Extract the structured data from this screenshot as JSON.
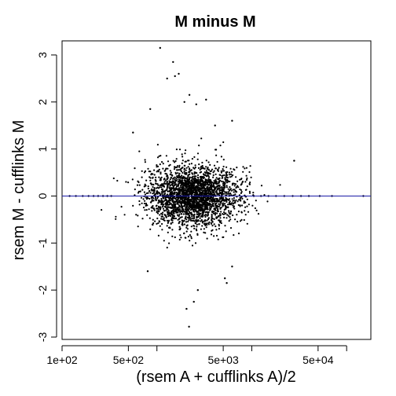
{
  "chart_data": {
    "type": "scatter",
    "title": "M minus M",
    "xlabel": "(rsem A + cufflinks A)/2",
    "ylabel": "rsem M - cufflinks M",
    "x_scale": "log",
    "xlim": [
      100,
      180000
    ],
    "ylim": [
      -3.05,
      3.3
    ],
    "x_ticks": [
      {
        "value": 100,
        "label": "1e+02"
      },
      {
        "value": 500,
        "label": "5e+02"
      },
      {
        "value": 5000,
        "label": "5e+03"
      },
      {
        "value": 50000,
        "label": "5e+04"
      }
    ],
    "x_minor_ticks": [
      1000,
      10000,
      100000
    ],
    "y_ticks": [
      {
        "value": -3,
        "label": "-3"
      },
      {
        "value": -2,
        "label": "-2"
      },
      {
        "value": -1,
        "label": "-1"
      },
      {
        "value": 0,
        "label": "0"
      },
      {
        "value": 1,
        "label": "1"
      },
      {
        "value": 2,
        "label": "2"
      },
      {
        "value": 3,
        "label": "3"
      }
    ],
    "reference_line": {
      "y": 0,
      "color": "#1a1aa6"
    },
    "point_color": "#000000",
    "grid": false,
    "legend": "none",
    "points": [
      {
        "x": 1080,
        "y": 3.15
      },
      {
        "x": 1480,
        "y": 2.85
      },
      {
        "x": 1700,
        "y": 2.6
      },
      {
        "x": 1280,
        "y": 2.5
      },
      {
        "x": 1550,
        "y": 2.55
      },
      {
        "x": 2200,
        "y": 2.15
      },
      {
        "x": 3300,
        "y": 2.05
      },
      {
        "x": 1950,
        "y": 2.0
      },
      {
        "x": 2600,
        "y": 1.95
      },
      {
        "x": 850,
        "y": 1.85
      },
      {
        "x": 6200,
        "y": 1.6
      },
      {
        "x": 560,
        "y": 1.35
      },
      {
        "x": 4100,
        "y": 1.5
      },
      {
        "x": 28000,
        "y": 0.75
      },
      {
        "x": 5200,
        "y": -1.75
      },
      {
        "x": 5450,
        "y": -1.85
      },
      {
        "x": 2700,
        "y": -2.0
      },
      {
        "x": 2450,
        "y": -2.25
      },
      {
        "x": 2050,
        "y": -2.4
      },
      {
        "x": 2180,
        "y": -2.78
      },
      {
        "x": 6200,
        "y": -1.5
      },
      {
        "x": 800,
        "y": -1.6
      },
      {
        "x": 120,
        "y": 0.0
      },
      {
        "x": 140,
        "y": 0.0
      },
      {
        "x": 165,
        "y": 0.0
      },
      {
        "x": 190,
        "y": 0.0
      },
      {
        "x": 215,
        "y": 0.0
      },
      {
        "x": 240,
        "y": 0.0
      },
      {
        "x": 270,
        "y": 0.0
      },
      {
        "x": 300,
        "y": 0.0
      },
      {
        "x": 330,
        "y": 0.0
      },
      {
        "x": 8500,
        "y": 0.0
      },
      {
        "x": 10500,
        "y": 0.0
      },
      {
        "x": 12500,
        "y": 0.0
      },
      {
        "x": 15000,
        "y": 0.0
      },
      {
        "x": 18000,
        "y": 0.0
      },
      {
        "x": 22000,
        "y": 0.0
      },
      {
        "x": 27000,
        "y": 0.0
      },
      {
        "x": 33000,
        "y": 0.0
      },
      {
        "x": 40000,
        "y": 0.0
      },
      {
        "x": 52000,
        "y": 0.0
      },
      {
        "x": 70000,
        "y": 0.0
      },
      {
        "x": 150000,
        "y": 0.0
      }
    ],
    "cloud": {
      "x_center": 2400,
      "x_log10_sd": 0.24,
      "y_sd": 0.28,
      "count": 2600
    }
  }
}
